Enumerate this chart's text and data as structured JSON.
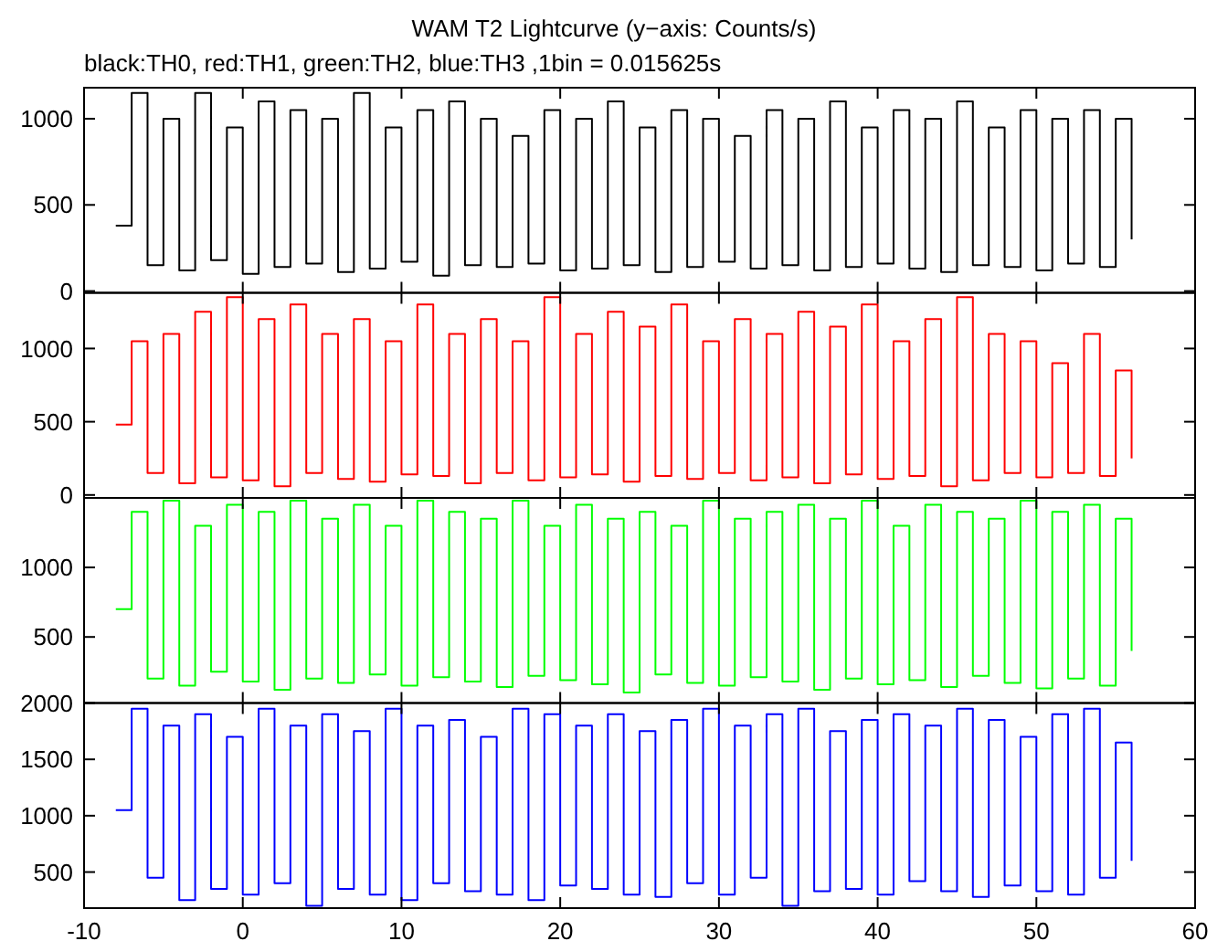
{
  "chart_data": [
    {
      "type": "step",
      "title": "WAM T2 Lightcurve (y−axis: Counts/s)",
      "subtitle": "black:TH0, red:TH1, green:TH2, blue:TH3 ,1bin = 0.015625s",
      "x": [
        -8,
        -7,
        -6,
        -5,
        -4,
        -3,
        -2,
        -1,
        0,
        1,
        2,
        3,
        4,
        5,
        6,
        7,
        8,
        9,
        10,
        11,
        12,
        13,
        14,
        15,
        16,
        17,
        18,
        19,
        20,
        21,
        22,
        23,
        24,
        25,
        26,
        27,
        28,
        29,
        30,
        31,
        32,
        33,
        34,
        35,
        36,
        37,
        38,
        39,
        40,
        41,
        42,
        43,
        44,
        45,
        46,
        47,
        48,
        49,
        50,
        51,
        52,
        53,
        54,
        55,
        56
      ],
      "xlim": [
        -10,
        60
      ],
      "xticks": [
        -10,
        0,
        10,
        20,
        30,
        40,
        50,
        60
      ],
      "ylim": [
        -10,
        1180
      ],
      "yticks": [
        0,
        500,
        1000
      ],
      "tick_labels": "y",
      "series": [
        {
          "color": "#000000",
          "values": [
            380,
            1150,
            150,
            1000,
            120,
            1150,
            180,
            950,
            100,
            1100,
            140,
            1050,
            160,
            1000,
            110,
            1150,
            130,
            950,
            170,
            1050,
            90,
            1100,
            150,
            1000,
            140,
            900,
            160,
            1050,
            120,
            1000,
            130,
            1100,
            150,
            950,
            110,
            1050,
            140,
            1000,
            170,
            900,
            130,
            1050,
            150,
            1000,
            120,
            1100,
            140,
            950,
            160,
            1050,
            130,
            1000,
            110,
            1100,
            150,
            950,
            140,
            1050,
            120,
            1000,
            160,
            1050,
            140,
            1000,
            300
          ]
        }
      ]
    },
    {
      "type": "step",
      "x": [
        -8,
        -7,
        -6,
        -5,
        -4,
        -3,
        -2,
        -1,
        0,
        1,
        2,
        3,
        4,
        5,
        6,
        7,
        8,
        9,
        10,
        11,
        12,
        13,
        14,
        15,
        16,
        17,
        18,
        19,
        20,
        21,
        22,
        23,
        24,
        25,
        26,
        27,
        28,
        29,
        30,
        31,
        32,
        33,
        34,
        35,
        36,
        37,
        38,
        39,
        40,
        41,
        42,
        43,
        44,
        45,
        46,
        47,
        48,
        49,
        50,
        51,
        52,
        53,
        54,
        55,
        56
      ],
      "xlim": [
        -10,
        60
      ],
      "xticks": [
        -10,
        0,
        10,
        20,
        30,
        40,
        50,
        60
      ],
      "ylim": [
        -20,
        1380
      ],
      "yticks": [
        0,
        500,
        1000
      ],
      "tick_labels": "y",
      "series": [
        {
          "color": "#ff0000",
          "values": [
            480,
            1050,
            150,
            1100,
            80,
            1250,
            120,
            1350,
            100,
            1200,
            60,
            1300,
            150,
            1100,
            110,
            1200,
            90,
            1050,
            140,
            1300,
            130,
            1100,
            80,
            1200,
            150,
            1050,
            100,
            1350,
            120,
            1100,
            140,
            1250,
            90,
            1150,
            130,
            1300,
            110,
            1050,
            150,
            1200,
            100,
            1100,
            120,
            1250,
            80,
            1150,
            140,
            1300,
            110,
            1050,
            130,
            1200,
            60,
            1350,
            100,
            1100,
            150,
            1050,
            120,
            900,
            150,
            1100,
            130,
            850,
            250
          ]
        }
      ]
    },
    {
      "type": "step",
      "x": [
        -8,
        -7,
        -6,
        -5,
        -4,
        -3,
        -2,
        -1,
        0,
        1,
        2,
        3,
        4,
        5,
        6,
        7,
        8,
        9,
        10,
        11,
        12,
        13,
        14,
        15,
        16,
        17,
        18,
        19,
        20,
        21,
        22,
        23,
        24,
        25,
        26,
        27,
        28,
        29,
        30,
        31,
        32,
        33,
        34,
        35,
        36,
        37,
        38,
        39,
        40,
        41,
        42,
        43,
        44,
        45,
        46,
        47,
        48,
        49,
        50,
        51,
        52,
        53,
        54,
        55,
        56
      ],
      "xlim": [
        -10,
        60
      ],
      "xticks": [
        -10,
        0,
        10,
        20,
        30,
        40,
        50,
        60
      ],
      "ylim": [
        25,
        1500
      ],
      "yticks": [
        500,
        1000
      ],
      "tick_labels": "y",
      "series": [
        {
          "color": "#00ff00",
          "values": [
            700,
            1400,
            200,
            1480,
            150,
            1300,
            250,
            1450,
            180,
            1400,
            120,
            1480,
            200,
            1350,
            170,
            1450,
            230,
            1300,
            150,
            1480,
            210,
            1400,
            180,
            1350,
            140,
            1480,
            220,
            1300,
            190,
            1450,
            160,
            1350,
            100,
            1400,
            230,
            1300,
            170,
            1480,
            150,
            1350,
            210,
            1400,
            180,
            1450,
            120,
            1350,
            200,
            1480,
            160,
            1300,
            190,
            1450,
            140,
            1400,
            220,
            1350,
            170,
            1480,
            130,
            1400,
            200,
            1450,
            150,
            1350,
            400
          ]
        }
      ]
    },
    {
      "type": "step",
      "x": [
        -8,
        -7,
        -6,
        -5,
        -4,
        -3,
        -2,
        -1,
        0,
        1,
        2,
        3,
        4,
        5,
        6,
        7,
        8,
        9,
        10,
        11,
        12,
        13,
        14,
        15,
        16,
        17,
        18,
        19,
        20,
        21,
        22,
        23,
        24,
        25,
        26,
        27,
        28,
        29,
        30,
        31,
        32,
        33,
        34,
        35,
        36,
        37,
        38,
        39,
        40,
        41,
        42,
        43,
        44,
        45,
        46,
        47,
        48,
        49,
        50,
        51,
        52,
        53,
        54,
        55,
        56
      ],
      "xlim": [
        -10,
        60
      ],
      "xticks": [
        -10,
        0,
        10,
        20,
        30,
        40,
        50,
        60
      ],
      "ylim": [
        180,
        2000
      ],
      "yticks": [
        500,
        1000,
        1500,
        2000
      ],
      "series": [
        {
          "color": "#0000ff",
          "values": [
            1050,
            1950,
            450,
            1800,
            250,
            1900,
            350,
            1700,
            300,
            1950,
            400,
            1800,
            200,
            1900,
            350,
            1750,
            300,
            1950,
            250,
            1800,
            400,
            1850,
            330,
            1700,
            300,
            1950,
            250,
            1900,
            380,
            1800,
            350,
            1900,
            300,
            1750,
            280,
            1850,
            400,
            1950,
            300,
            1800,
            450,
            1900,
            200,
            1950,
            330,
            1750,
            350,
            1850,
            300,
            1900,
            420,
            1800,
            330,
            1950,
            280,
            1850,
            380,
            1700,
            330,
            1900,
            300,
            1950,
            450,
            1650,
            600
          ]
        }
      ]
    }
  ]
}
